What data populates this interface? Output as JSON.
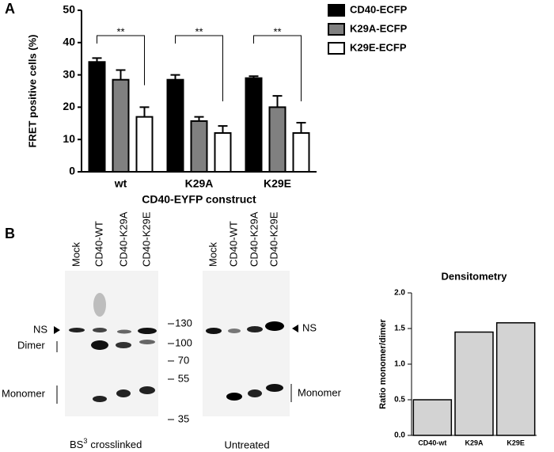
{
  "panel_labels": [
    "A",
    "B"
  ],
  "chart_data": [
    {
      "type": "bar",
      "x_label": "CD40-EYFP construct",
      "y_label": "FRET positive cells (%)",
      "categories": [
        "wt",
        "K29A",
        "K29E"
      ],
      "series": [
        {
          "name": "CD40-ECFP",
          "color": "#000000",
          "values": [
            34,
            28.5,
            29
          ],
          "errors": [
            1.2,
            1.5,
            0.6
          ]
        },
        {
          "name": "K29A-ECFP",
          "color": "#808080",
          "values": [
            28.5,
            15.7,
            20
          ],
          "errors": [
            3,
            1.3,
            3.5
          ]
        },
        {
          "name": "K29E-ECFP",
          "color": "#ffffff",
          "values": [
            17,
            12,
            12
          ],
          "errors": [
            3,
            2.2,
            3.2
          ]
        }
      ],
      "annotations": [
        "**",
        "**",
        "**"
      ],
      "ylim": [
        0,
        50
      ],
      "yticks": [
        0,
        10,
        20,
        30,
        40,
        50
      ],
      "legend": "right"
    },
    {
      "type": "bar",
      "title": "Densitometry",
      "y_label": "Ratio monomer/dimer",
      "categories": [
        "CD40-wt",
        "K29A",
        "K29E"
      ],
      "values": [
        0.5,
        1.45,
        1.58
      ],
      "color": "#d3d3d3",
      "ylim": [
        0,
        2
      ],
      "yticks": [
        {
          "value": 0,
          "label": "0.0"
        },
        0.5,
        {
          "value": 1,
          "label": "1.0"
        },
        1.5,
        {
          "value": 2,
          "label": "2.0"
        }
      ]
    }
  ],
  "blot": {
    "lanes_left": [
      "Mock",
      "CD40-WT",
      "CD40-K29A",
      "CD40-K29E"
    ],
    "lanes_right": [
      "Mock",
      "CD40-WT",
      "CD40-K29A",
      "CD40-K29E"
    ],
    "markers": [
      "130",
      "100",
      "70",
      "55",
      "35"
    ],
    "ns_left": "NS",
    "dimer": "Dimer",
    "monomer_left": "Monomer",
    "ns_right": "NS",
    "monomer_right": "Monomer",
    "caption_left": {
      "text": "BS",
      "superscript": "3",
      "suffix": "crosslinked"
    },
    "caption_right": "Untreated"
  }
}
